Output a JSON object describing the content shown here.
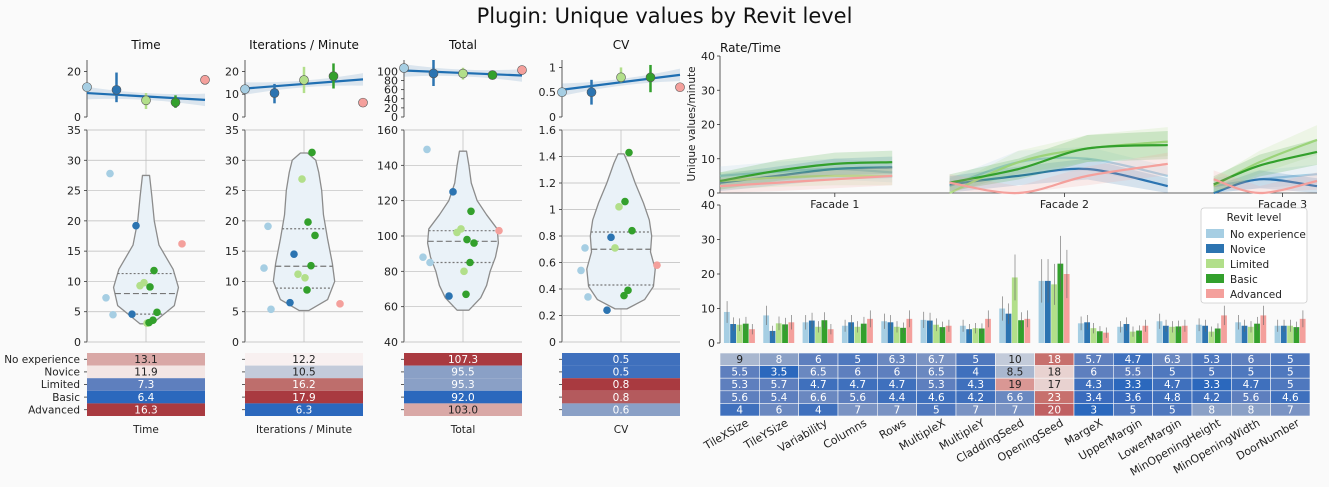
{
  "title": "Plugin: Unique values by Revit level",
  "levels": [
    "No experience",
    "Novice",
    "Limited",
    "Basic",
    "Advanced"
  ],
  "level_colors": [
    "#a6cee3",
    "#2c74b1",
    "#b2df8a",
    "#33a02c",
    "#f4a09c"
  ],
  "legend_title": "Revit level",
  "panels": [
    {
      "title": "Time",
      "xlabel": "Time",
      "top_ylim": [
        0,
        25
      ],
      "top_ticks": [
        0,
        20
      ],
      "violin_ylim": [
        0,
        35
      ],
      "violin_ticks": [
        0,
        5,
        10,
        15,
        20,
        25,
        30,
        35
      ],
      "means": [
        13.1,
        11.9,
        7.3,
        6.4,
        16.3
      ],
      "ci": [
        [
          13.1,
          13.1
        ],
        [
          6.5,
          19.5
        ],
        [
          3.5,
          10.5
        ],
        [
          4,
          9.5
        ],
        [
          16.3,
          16.3
        ]
      ],
      "fit": [
        [
          0,
          10.5
        ],
        [
          4,
          7.5
        ]
      ],
      "table": [
        "13.1",
        "11.9",
        "7.3",
        "6.4",
        "16.3"
      ],
      "table_colors": [
        "#d9a8a6",
        "#f3e6e4",
        "#5e7fbe",
        "#2b68bd",
        "#a93a40"
      ],
      "points": [
        [
          0,
          27.8
        ],
        [
          0,
          7.3
        ],
        [
          0,
          4.5
        ],
        [
          1,
          19.2
        ],
        [
          1,
          4.6
        ],
        [
          2,
          9.8
        ],
        [
          2,
          9.3
        ],
        [
          2,
          3.1
        ],
        [
          3,
          11.8
        ],
        [
          3,
          9.1
        ],
        [
          3,
          4.9
        ],
        [
          3,
          3.6
        ],
        [
          3,
          3.2
        ],
        [
          4,
          16.2
        ]
      ],
      "violin_profile": [
        [
          3,
          0.1
        ],
        [
          6,
          0.48
        ],
        [
          9,
          0.55
        ],
        [
          12,
          0.46
        ],
        [
          16,
          0.22
        ],
        [
          20,
          0.14
        ],
        [
          24,
          0.1
        ],
        [
          27.5,
          0.06
        ]
      ],
      "quartiles": [
        4.6,
        8.0,
        11.3
      ]
    },
    {
      "title": "Iterations / Minute",
      "xlabel": "Iterations / Minute",
      "top_ylim": [
        0,
        25
      ],
      "top_ticks": [
        0,
        10,
        20
      ],
      "violin_ylim": [
        0,
        35
      ],
      "violin_ticks": [
        0,
        5,
        10,
        15,
        20,
        25,
        30,
        35
      ],
      "means": [
        12.2,
        10.5,
        16.2,
        17.9,
        6.3
      ],
      "ci": [
        [
          12.2,
          12.2
        ],
        [
          6,
          14.5
        ],
        [
          10.5,
          22
        ],
        [
          12.5,
          23.5
        ],
        [
          6.3,
          6.3
        ]
      ],
      "fit": [
        [
          0,
          12.5
        ],
        [
          4,
          16.5
        ]
      ],
      "table": [
        "12.2",
        "10.5",
        "16.2",
        "17.9",
        "6.3"
      ],
      "table_colors": [
        "#f8f0f0",
        "#c3cbda",
        "#be6e6c",
        "#a93a40",
        "#2b68bd"
      ],
      "points": [
        [
          0,
          19.1
        ],
        [
          0,
          12.2
        ],
        [
          0,
          5.4
        ],
        [
          1,
          14.5
        ],
        [
          1,
          6.5
        ],
        [
          2,
          26.9
        ],
        [
          2,
          11.2
        ],
        [
          2,
          10.6
        ],
        [
          3,
          31.3
        ],
        [
          3,
          19.8
        ],
        [
          3,
          17.6
        ],
        [
          3,
          12.6
        ],
        [
          3,
          8.6
        ],
        [
          4,
          6.3
        ]
      ],
      "violin_profile": [
        [
          5.2,
          0.08
        ],
        [
          7,
          0.4
        ],
        [
          10,
          0.52
        ],
        [
          13,
          0.48
        ],
        [
          17,
          0.4
        ],
        [
          21,
          0.33
        ],
        [
          25,
          0.3
        ],
        [
          28,
          0.25
        ],
        [
          30,
          0.2
        ],
        [
          31.2,
          0.06
        ]
      ],
      "quartiles": [
        8.9,
        12.5,
        18.7
      ]
    },
    {
      "title": "Total",
      "xlabel": "Total",
      "top_ylim": [
        0,
        125
      ],
      "top_ticks": [
        0,
        20,
        40,
        60,
        80,
        100
      ],
      "violin_ylim": [
        40,
        160
      ],
      "violin_ticks": [
        40,
        60,
        80,
        100,
        120,
        140,
        160
      ],
      "means": [
        107.3,
        95.5,
        95.3,
        92.0,
        103.0
      ],
      "ci": [
        [
          107.3,
          107.3
        ],
        [
          68,
          125
        ],
        [
          82,
          108
        ],
        [
          85,
          100
        ],
        [
          103,
          103
        ]
      ],
      "fit": [
        [
          0,
          102
        ],
        [
          4,
          91
        ]
      ],
      "table": [
        "107.3",
        "95.5",
        "95.3",
        "92.0",
        "103.0"
      ],
      "table_colors": [
        "#a93a40",
        "#8aa0c6",
        "#8aa0c6",
        "#2b68bd",
        "#d9a8a6"
      ],
      "points": [
        [
          0,
          149
        ],
        [
          0,
          88
        ],
        [
          0,
          85
        ],
        [
          1,
          125
        ],
        [
          1,
          66
        ],
        [
          2,
          104
        ],
        [
          2,
          102
        ],
        [
          2,
          80
        ],
        [
          3,
          114
        ],
        [
          3,
          98
        ],
        [
          3,
          96
        ],
        [
          3,
          85
        ],
        [
          3,
          67
        ],
        [
          4,
          103
        ]
      ],
      "violin_profile": [
        [
          58,
          0.1
        ],
        [
          65,
          0.3
        ],
        [
          72,
          0.4
        ],
        [
          80,
          0.46
        ],
        [
          88,
          0.55
        ],
        [
          96,
          0.6
        ],
        [
          104,
          0.58
        ],
        [
          112,
          0.4
        ],
        [
          120,
          0.24
        ],
        [
          130,
          0.14
        ],
        [
          140,
          0.1
        ],
        [
          148,
          0.06
        ]
      ],
      "quartiles": [
        85,
        97,
        103
      ]
    },
    {
      "title": "CV",
      "xlabel": "CV",
      "top_ylim": [
        0,
        1.15
      ],
      "top_ticks": [
        0,
        0.5,
        1.0
      ],
      "violin_ylim": [
        0,
        1.6
      ],
      "violin_ticks": [
        0.0,
        0.2,
        0.4,
        0.6,
        0.8,
        1.0,
        1.2,
        1.4,
        1.6
      ],
      "means": [
        0.5,
        0.5,
        0.8,
        0.8,
        0.6
      ],
      "ci": [
        [
          0.5,
          0.5
        ],
        [
          0.25,
          0.75
        ],
        [
          0.7,
          1.0
        ],
        [
          0.5,
          1.05
        ],
        [
          0.6,
          0.6
        ]
      ],
      "fit": [
        [
          0,
          0.55
        ],
        [
          4,
          0.85
        ]
      ],
      "table": [
        "0.5",
        "0.5",
        "0.8",
        "0.8",
        "0.6"
      ],
      "table_colors": [
        "#3f70bd",
        "#3f70bd",
        "#a93a40",
        "#b45a5d",
        "#8aa0c6"
      ],
      "points": [
        [
          0,
          0.71
        ],
        [
          0,
          0.54
        ],
        [
          0,
          0.34
        ],
        [
          1,
          0.79
        ],
        [
          1,
          0.24
        ],
        [
          2,
          1.02
        ],
        [
          2,
          0.71
        ],
        [
          3,
          1.43
        ],
        [
          3,
          1.06
        ],
        [
          3,
          0.84
        ],
        [
          3,
          0.39
        ],
        [
          3,
          0.35
        ],
        [
          4,
          0.58
        ]
      ],
      "violin_profile": [
        [
          0.25,
          0.1
        ],
        [
          0.32,
          0.4
        ],
        [
          0.42,
          0.55
        ],
        [
          0.55,
          0.58
        ],
        [
          0.68,
          0.5
        ],
        [
          0.8,
          0.52
        ],
        [
          0.92,
          0.48
        ],
        [
          1.05,
          0.38
        ],
        [
          1.2,
          0.24
        ],
        [
          1.35,
          0.12
        ],
        [
          1.42,
          0.05
        ]
      ],
      "quartiles": [
        0.43,
        0.7,
        0.83
      ]
    }
  ],
  "rate": {
    "title": "Rate/Time",
    "ylabel": "Unique values/minute",
    "ylim": [
      0,
      40
    ],
    "ticks": [
      0,
      10,
      20,
      30,
      40
    ],
    "facades": [
      "Facade 1",
      "Facade 2",
      "Facade 3"
    ],
    "curves": [
      {
        "level": "No experience",
        "color": "#a6cee3",
        "points": [
          [
            0,
            5
          ],
          [
            0.25,
            6.2
          ],
          [
            0.5,
            7
          ],
          [
            0.75,
            6
          ],
          [
            1.0,
            2
          ],
          [
            1.3,
            9
          ],
          [
            1.6,
            10
          ],
          [
            1.95,
            5
          ],
          [
            2.15,
            2
          ],
          [
            2.35,
            4
          ],
          [
            2.6,
            5.5
          ]
        ]
      },
      {
        "level": "Novice",
        "color": "#2c74b1",
        "points": [
          [
            0,
            3
          ],
          [
            0.25,
            5
          ],
          [
            0.5,
            7
          ],
          [
            0.75,
            7.5
          ],
          [
            1.0,
            2.5
          ],
          [
            1.3,
            5
          ],
          [
            1.6,
            7
          ],
          [
            1.95,
            2
          ],
          [
            2.15,
            0
          ],
          [
            2.35,
            4
          ],
          [
            2.6,
            2
          ]
        ]
      },
      {
        "level": "Limited",
        "color": "#b2df8a",
        "points": [
          [
            0,
            3.5
          ],
          [
            0.25,
            4.5
          ],
          [
            0.5,
            5
          ],
          [
            0.75,
            5
          ],
          [
            1.0,
            0
          ],
          [
            1.3,
            9
          ],
          [
            1.6,
            13
          ],
          [
            1.95,
            15
          ],
          [
            2.15,
            2
          ],
          [
            2.35,
            9
          ],
          [
            2.6,
            15.5
          ]
        ]
      },
      {
        "level": "Basic",
        "color": "#33a02c",
        "points": [
          [
            0,
            3.5
          ],
          [
            0.25,
            6.5
          ],
          [
            0.5,
            8.5
          ],
          [
            0.75,
            9
          ],
          [
            1.0,
            3
          ],
          [
            1.3,
            7
          ],
          [
            1.6,
            13
          ],
          [
            1.95,
            14
          ],
          [
            2.15,
            2.5
          ],
          [
            2.35,
            8
          ],
          [
            2.6,
            12
          ]
        ]
      },
      {
        "level": "Advanced",
        "color": "#f4a09c",
        "points": [
          [
            0,
            2
          ],
          [
            0.25,
            3
          ],
          [
            0.5,
            4
          ],
          [
            0.75,
            5
          ],
          [
            1.0,
            3
          ],
          [
            1.3,
            0
          ],
          [
            1.6,
            5
          ],
          [
            1.95,
            8.5
          ],
          [
            2.15,
            4
          ],
          [
            2.35,
            0
          ],
          [
            2.6,
            3.5
          ]
        ]
      }
    ]
  },
  "bars": {
    "ylim": [
      0,
      40
    ],
    "ticks": [
      0,
      10,
      20,
      30,
      40
    ],
    "categories": [
      "TileXSize",
      "TileYSize",
      "Variability",
      "Columns",
      "Rows",
      "MultipleX",
      "MultipleY",
      "CladdingSeed",
      "OpeningSeed",
      "MargeX",
      "UpperMargin",
      "LowerMargin",
      "MinOpeningHeight",
      "MinOpeningWidth",
      "DoorNumber"
    ],
    "series": [
      {
        "name": "No experience",
        "values": [
          9,
          8,
          6,
          5,
          6.3,
          6.7,
          5,
          10,
          18,
          5.7,
          4.7,
          6.3,
          5.3,
          6,
          5
        ]
      },
      {
        "name": "Novice",
        "values": [
          5.5,
          3.5,
          6.5,
          6,
          6,
          6.5,
          4,
          8.5,
          18,
          6,
          5.5,
          5,
          5,
          5,
          5
        ]
      },
      {
        "name": "Limited",
        "values": [
          5.3,
          5.7,
          4.7,
          4.7,
          4.7,
          5.3,
          4.3,
          19,
          17,
          4.3,
          3.3,
          4.7,
          3.3,
          4.7,
          5
        ]
      },
      {
        "name": "Basic",
        "values": [
          5.6,
          5.4,
          6.6,
          5.6,
          4.4,
          4.6,
          4.2,
          6.6,
          23,
          3.4,
          3.6,
          4.8,
          4.2,
          5.6,
          4.6
        ]
      },
      {
        "name": "Advanced",
        "values": [
          4,
          6,
          4,
          7,
          7,
          5,
          7,
          7,
          20,
          3,
          5,
          5,
          8,
          8,
          7
        ]
      }
    ],
    "table": [
      [
        "9",
        "8",
        "6",
        "5",
        "6.3",
        "6.7",
        "5",
        "10",
        "18",
        "5.7",
        "4.7",
        "6.3",
        "5.3",
        "6",
        "5"
      ],
      [
        "5.5",
        "3.5",
        "6.5",
        "6",
        "6",
        "6.5",
        "4",
        "8.5",
        "18",
        "6",
        "5.5",
        "5",
        "5",
        "5",
        "5"
      ],
      [
        "5.3",
        "5.7",
        "4.7",
        "4.7",
        "4.7",
        "5.3",
        "4.3",
        "19",
        "17",
        "4.3",
        "3.3",
        "4.7",
        "3.3",
        "4.7",
        "5"
      ],
      [
        "5.6",
        "5.4",
        "6.6",
        "5.6",
        "4.4",
        "4.6",
        "4.2",
        "6.6",
        "23",
        "3.4",
        "3.6",
        "4.8",
        "4.2",
        "5.6",
        "4.6"
      ],
      [
        "4",
        "6",
        "4",
        "7",
        "7",
        "5",
        "7",
        "7",
        "20",
        "3",
        "5",
        "5",
        "8",
        "8",
        "7"
      ]
    ],
    "table_colors": [
      [
        "#a9b7cf",
        "#8aa0c6",
        "#5e7fbe",
        "#4f78be",
        "#6a88c0",
        "#7a93c3",
        "#4f78be",
        "#c3cbda",
        "#c7706d",
        "#5e7fbe",
        "#3f70bd",
        "#6a88c0",
        "#4f78be",
        "#5e7fbe",
        "#4f78be"
      ],
      [
        "#5e7fbe",
        "#2b68bd",
        "#6a88c0",
        "#5e7fbe",
        "#5e7fbe",
        "#6a88c0",
        "#3f70bd",
        "#a9b7cf",
        "#e8d2d0",
        "#5e7fbe",
        "#5e7fbe",
        "#4f78be",
        "#4f78be",
        "#4f78be",
        "#4f78be"
      ],
      [
        "#5e7fbe",
        "#5e7fbe",
        "#3f70bd",
        "#3f70bd",
        "#3f70bd",
        "#5e7fbe",
        "#3f70bd",
        "#d99794",
        "#e8d2d0",
        "#3f70bd",
        "#2b68bd",
        "#3f70bd",
        "#2b68bd",
        "#3f70bd",
        "#4f78be"
      ],
      [
        "#5e7fbe",
        "#5e7fbe",
        "#6a88c0",
        "#5e7fbe",
        "#3f70bd",
        "#3f70bd",
        "#3f70bd",
        "#6a88c0",
        "#c7706d",
        "#3a6bbd",
        "#3a6bbd",
        "#3f70bd",
        "#3f70bd",
        "#5e7fbe",
        "#3f70bd"
      ],
      [
        "#3f70bd",
        "#6a88c0",
        "#3f70bd",
        "#7a93c3",
        "#7a93c3",
        "#4f78be",
        "#7a93c3",
        "#7a93c3",
        "#c06062",
        "#2b68bd",
        "#4f78be",
        "#4f78be",
        "#8aa0c6",
        "#8aa0c6",
        "#7a93c3"
      ]
    ]
  }
}
